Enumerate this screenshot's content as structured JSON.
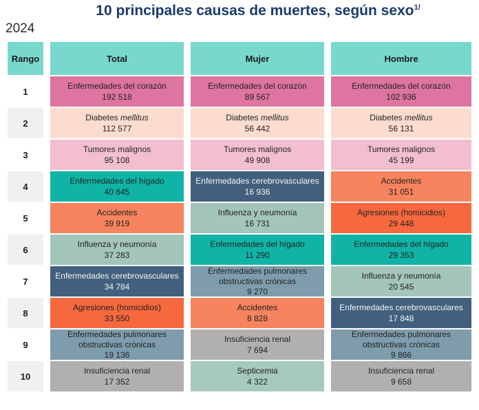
{
  "title": "10 principales causas de muertes, según sexo",
  "title_superscript": "1/",
  "year": "2024",
  "colors": {
    "header_bg": "#79d8ce",
    "title": "#1b3a6b",
    "rank_alt_bg": "#f0f0f0",
    "cell_text": "#232323",
    "white_text": "#f5f5f5"
  },
  "palette": {
    "corazon": {
      "bg": "#de74a0"
    },
    "diabetes": {
      "bg": "#fbdcce"
    },
    "tumores": {
      "bg": "#f3bed0"
    },
    "higado": {
      "bg": "#10b4a6"
    },
    "accidentes": {
      "bg": "#f7845e"
    },
    "influenza": {
      "bg": "#a3c5ba"
    },
    "cerebro": {
      "bg": "#42607e",
      "fg": "#f5f5f5"
    },
    "agresiones": {
      "bg": "#f6693e"
    },
    "pulmonares": {
      "bg": "#7e9cac"
    },
    "renal": {
      "bg": "#b2afaf"
    },
    "septicemia": {
      "bg": "#a6c9be"
    }
  },
  "table": {
    "headers": [
      "Rango",
      "Total",
      "Mujer",
      "Hombre"
    ],
    "rows": [
      {
        "rank": "1",
        "cells": [
          {
            "cause": "Enfermedades del corazón",
            "value": "192 518",
            "category": "corazon"
          },
          {
            "cause": "Enfermedades del corazón",
            "value": "89 567",
            "category": "corazon"
          },
          {
            "cause": "Enfermedades del corazón",
            "value": "102 936",
            "category": "corazon"
          }
        ]
      },
      {
        "rank": "2",
        "cells": [
          {
            "cause": "Diabetes mellitus",
            "italic": "mellitus",
            "value": "112 577",
            "category": "diabetes"
          },
          {
            "cause": "Diabetes mellitus",
            "italic": "mellitus",
            "value": "56 442",
            "category": "diabetes"
          },
          {
            "cause": "Diabetes mellitus",
            "italic": "mellitus",
            "value": "56 131",
            "category": "diabetes"
          }
        ]
      },
      {
        "rank": "3",
        "cells": [
          {
            "cause": "Tumores malignos",
            "value": "95 108",
            "category": "tumores"
          },
          {
            "cause": "Tumores malignos",
            "value": "49 908",
            "category": "tumores"
          },
          {
            "cause": "Tumores malignos",
            "value": "45 199",
            "category": "tumores"
          }
        ]
      },
      {
        "rank": "4",
        "cells": [
          {
            "cause": "Enfermedades del hígado",
            "value": "40 645",
            "category": "higado"
          },
          {
            "cause": "Enfermedades cerebrovasculares",
            "value": "16 936",
            "category": "cerebro"
          },
          {
            "cause": "Accidentes",
            "value": "31 051",
            "category": "accidentes"
          }
        ]
      },
      {
        "rank": "5",
        "cells": [
          {
            "cause": "Accidentes",
            "value": "39 919",
            "category": "accidentes"
          },
          {
            "cause": "Influenza y neumonía",
            "value": "16 731",
            "category": "influenza"
          },
          {
            "cause": "Agresiones (homicidios)",
            "value": "29 448",
            "category": "agresiones"
          }
        ]
      },
      {
        "rank": "6",
        "cells": [
          {
            "cause": "Influenza y neumonía",
            "value": "37 283",
            "category": "influenza"
          },
          {
            "cause": "Enfermedades del hígado",
            "value": "11 290",
            "category": "higado"
          },
          {
            "cause": "Enfermedades del hígado",
            "value": "29 353",
            "category": "higado"
          }
        ]
      },
      {
        "rank": "7",
        "cells": [
          {
            "cause": "Enfermedades cerebrovasculares",
            "value": "34 784",
            "category": "cerebro"
          },
          {
            "cause": "Enfermedades pulmonares obstructivas crónicas",
            "value": "9 270",
            "category": "pulmonares"
          },
          {
            "cause": "Influenza y neumonía",
            "value": "20 545",
            "category": "influenza"
          }
        ]
      },
      {
        "rank": "8",
        "cells": [
          {
            "cause": "Agresiones (homicidios)",
            "value": "33 550",
            "category": "agresiones"
          },
          {
            "cause": "Accidentes",
            "value": "8 828",
            "category": "accidentes"
          },
          {
            "cause": "Enfermedades cerebrovasculares",
            "value": "17 848",
            "category": "cerebro"
          }
        ]
      },
      {
        "rank": "9",
        "cells": [
          {
            "cause": "Enfermedades pulmonares obstructivas crónicas",
            "value": "19 136",
            "category": "pulmonares"
          },
          {
            "cause": "Insuficiencia renal",
            "value": "7 694",
            "category": "renal"
          },
          {
            "cause": "Enfermedades pulmonares obstructivas crónicas",
            "value": "9 866",
            "category": "pulmonares"
          }
        ]
      },
      {
        "rank": "10",
        "cells": [
          {
            "cause": "Insuficiencia renal",
            "value": "17 352",
            "category": "renal"
          },
          {
            "cause": "Septicemia",
            "value": "4 322",
            "category": "septicemia"
          },
          {
            "cause": "Insuficiencia renal",
            "value": "9 658",
            "category": "renal"
          }
        ]
      }
    ]
  },
  "chart_data": {
    "type": "table",
    "title": "10 principales causas de muertes, según sexo 1/ — 2024",
    "columns": [
      "Rango",
      "Total",
      "Mujer",
      "Hombre"
    ],
    "rows": [
      [
        1,
        [
          "Enfermedades del corazón",
          192518
        ],
        [
          "Enfermedades del corazón",
          89567
        ],
        [
          "Enfermedades del corazón",
          102936
        ]
      ],
      [
        2,
        [
          "Diabetes mellitus",
          112577
        ],
        [
          "Diabetes mellitus",
          56442
        ],
        [
          "Diabetes mellitus",
          56131
        ]
      ],
      [
        3,
        [
          "Tumores malignos",
          95108
        ],
        [
          "Tumores malignos",
          49908
        ],
        [
          "Tumores malignos",
          45199
        ]
      ],
      [
        4,
        [
          "Enfermedades del hígado",
          40645
        ],
        [
          "Enfermedades cerebrovasculares",
          16936
        ],
        [
          "Accidentes",
          31051
        ]
      ],
      [
        5,
        [
          "Accidentes",
          39919
        ],
        [
          "Influenza y neumonía",
          16731
        ],
        [
          "Agresiones (homicidios)",
          29448
        ]
      ],
      [
        6,
        [
          "Influenza y neumonía",
          37283
        ],
        [
          "Enfermedades del hígado",
          11290
        ],
        [
          "Enfermedades del hígado",
          29353
        ]
      ],
      [
        7,
        [
          "Enfermedades cerebrovasculares",
          34784
        ],
        [
          "Enfermedades pulmonares obstructivas crónicas",
          9270
        ],
        [
          "Influenza y neumonía",
          20545
        ]
      ],
      [
        8,
        [
          "Agresiones (homicidios)",
          33550
        ],
        [
          "Accidentes",
          8828
        ],
        [
          "Enfermedades cerebrovasculares",
          17848
        ]
      ],
      [
        9,
        [
          "Enfermedades pulmonares obstructivas crónicas",
          19136
        ],
        [
          "Insuficiencia renal",
          7694
        ],
        [
          "Enfermedades pulmonares obstructivas crónicas",
          9866
        ]
      ],
      [
        10,
        [
          "Insuficiencia renal",
          17352
        ],
        [
          "Septicemia",
          4322
        ],
        [
          "Insuficiencia renal",
          9658
        ]
      ]
    ]
  }
}
